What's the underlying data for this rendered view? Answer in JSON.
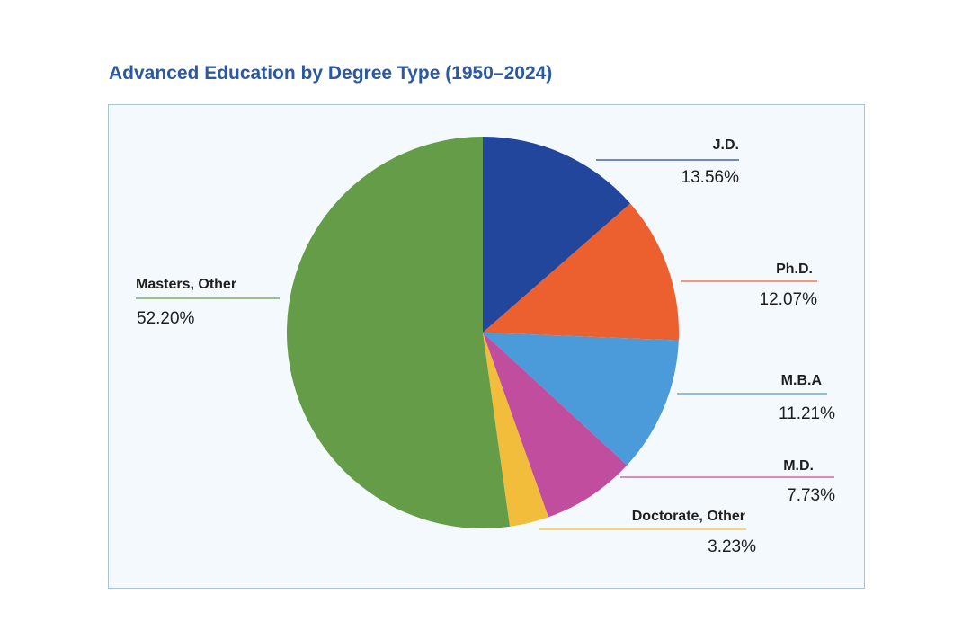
{
  "chart_data": {
    "type": "pie",
    "title": "Advanced Education by Degree Type  (1950–2024)",
    "unit": "%",
    "slices": [
      {
        "label": "J.D.",
        "value": 13.56,
        "display": "13.56%",
        "color": "#21469c"
      },
      {
        "label": "Ph.D.",
        "value": 12.07,
        "display": "12.07%",
        "color": "#ec6030"
      },
      {
        "label": "M.B.A",
        "value": 11.21,
        "display": "11.21%",
        "color": "#4b9bda"
      },
      {
        "label": "M.D.",
        "value": 7.73,
        "display": "7.73%",
        "color": "#c14d9e"
      },
      {
        "label": "Doctorate, Other",
        "value": 3.23,
        "display": "3.23%",
        "color": "#f1bd3b"
      },
      {
        "label": "Masters, Other",
        "value": 52.2,
        "display": "52.20%",
        "color": "#659c48"
      }
    ],
    "start_angle": "12 o'clock",
    "direction": "clockwise",
    "legend": "none (direct labels with leader lines)"
  },
  "colors": {
    "title": "#2c5aa0",
    "panel_background": "#f4f9fd",
    "panel_border": "#a9c4d6",
    "label_text": "#1e1e1e"
  }
}
